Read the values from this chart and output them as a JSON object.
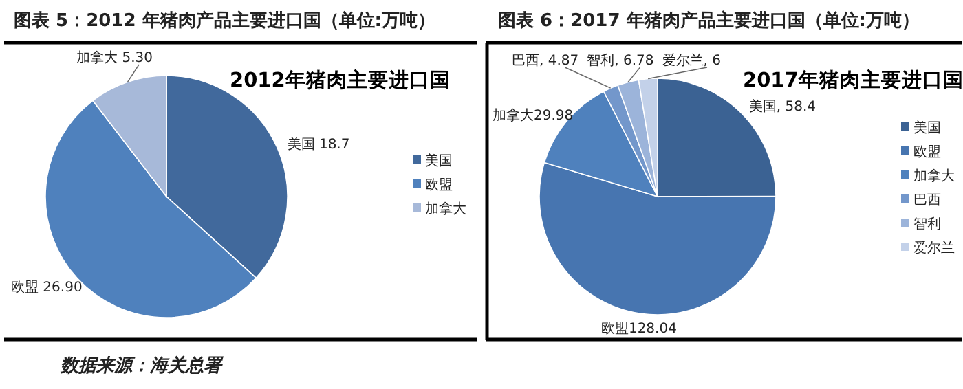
{
  "chart_data": [
    {
      "type": "pie",
      "title": "图表 5：2012 年猪肉产品主要进口国（单位:万吨）",
      "subtitle": "2012年猪肉主要进口国",
      "categories": [
        "美国",
        "欧盟",
        "加拿大"
      ],
      "values": [
        18.7,
        26.9,
        5.3
      ],
      "colors": [
        "#41699c",
        "#4f81bd",
        "#a7b9d9"
      ],
      "value_labels": [
        "美国 18.7",
        "欧盟 26.90",
        "加拿大 5.30"
      ],
      "legend": "right",
      "annotations": [
        "数据来源：海关总署"
      ]
    },
    {
      "type": "pie",
      "title": "图表 6：2017 年猪肉产品主要进口国（单位:万吨）",
      "subtitle": "2017年猪肉主要进口国",
      "categories": [
        "美国",
        "欧盟",
        "加拿大",
        "巴西",
        "智利",
        "爱尔兰"
      ],
      "values": [
        58.4,
        128.04,
        29.98,
        4.87,
        6.78,
        6
      ],
      "colors": [
        "#3b6293",
        "#4775b0",
        "#4f81bd",
        "#7397cb",
        "#9cb4da",
        "#c3d1e9"
      ],
      "value_labels": [
        "美国, 58.4",
        "欧盟128.04",
        "加拿大29.98",
        "巴西, 4.87",
        "智利, 6.78",
        "爱尔兰, 6"
      ],
      "legend": "right"
    }
  ]
}
